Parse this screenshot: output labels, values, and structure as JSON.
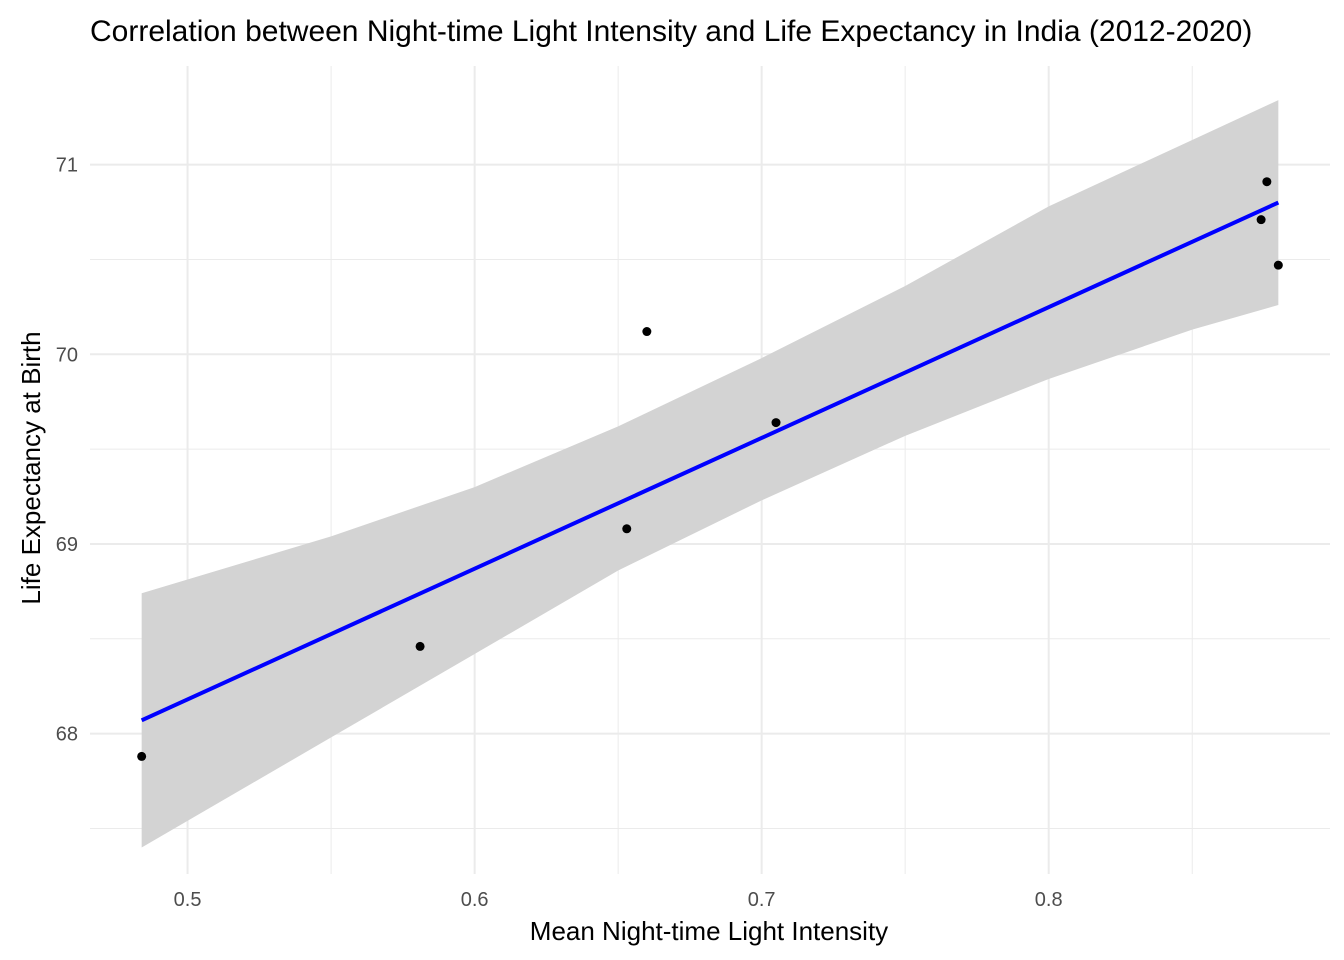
{
  "chart_data": {
    "type": "scatter",
    "title": "Correlation between Night-time Light Intensity and Life Expectancy in India (2012-2020)",
    "xlabel": "Mean Night-time Light Intensity",
    "ylabel": "Life Expectancy at Birth",
    "xlim": [
      0.466,
      0.898
    ],
    "ylim": [
      67.26,
      71.52
    ],
    "x_ticks": [
      0.5,
      0.6,
      0.7,
      0.8
    ],
    "x_tick_labels": [
      "0.5",
      "0.6",
      "0.7",
      "0.8"
    ],
    "x_minor_ticks": [
      0.55,
      0.65,
      0.75,
      0.85
    ],
    "y_ticks": [
      68,
      69,
      70,
      71
    ],
    "y_tick_labels": [
      "68",
      "69",
      "70",
      "71"
    ],
    "y_minor_ticks": [
      67.5,
      68.5,
      69.5,
      70.5
    ],
    "grid": true,
    "points": [
      {
        "x": 0.484,
        "y": 67.88
      },
      {
        "x": 0.581,
        "y": 68.46
      },
      {
        "x": 0.653,
        "y": 69.08
      },
      {
        "x": 0.66,
        "y": 70.12
      },
      {
        "x": 0.705,
        "y": 69.64
      },
      {
        "x": 0.874,
        "y": 70.71
      },
      {
        "x": 0.876,
        "y": 70.91
      },
      {
        "x": 0.88,
        "y": 70.47
      }
    ],
    "fit_line": {
      "x": [
        0.484,
        0.88
      ],
      "y": [
        68.07,
        70.8
      ]
    },
    "confidence_band": {
      "x": [
        0.484,
        0.55,
        0.6,
        0.65,
        0.7,
        0.75,
        0.8,
        0.85,
        0.88
      ],
      "lower": [
        67.4,
        67.98,
        68.42,
        68.86,
        69.23,
        69.57,
        69.87,
        70.13,
        70.26
      ],
      "upper": [
        68.74,
        69.04,
        69.3,
        69.62,
        69.98,
        70.36,
        70.78,
        71.13,
        71.34
      ]
    },
    "colors": {
      "point": "#000000",
      "fit_line": "#0000ff",
      "band": "#d3d3d3",
      "grid": "#ebebeb"
    }
  }
}
